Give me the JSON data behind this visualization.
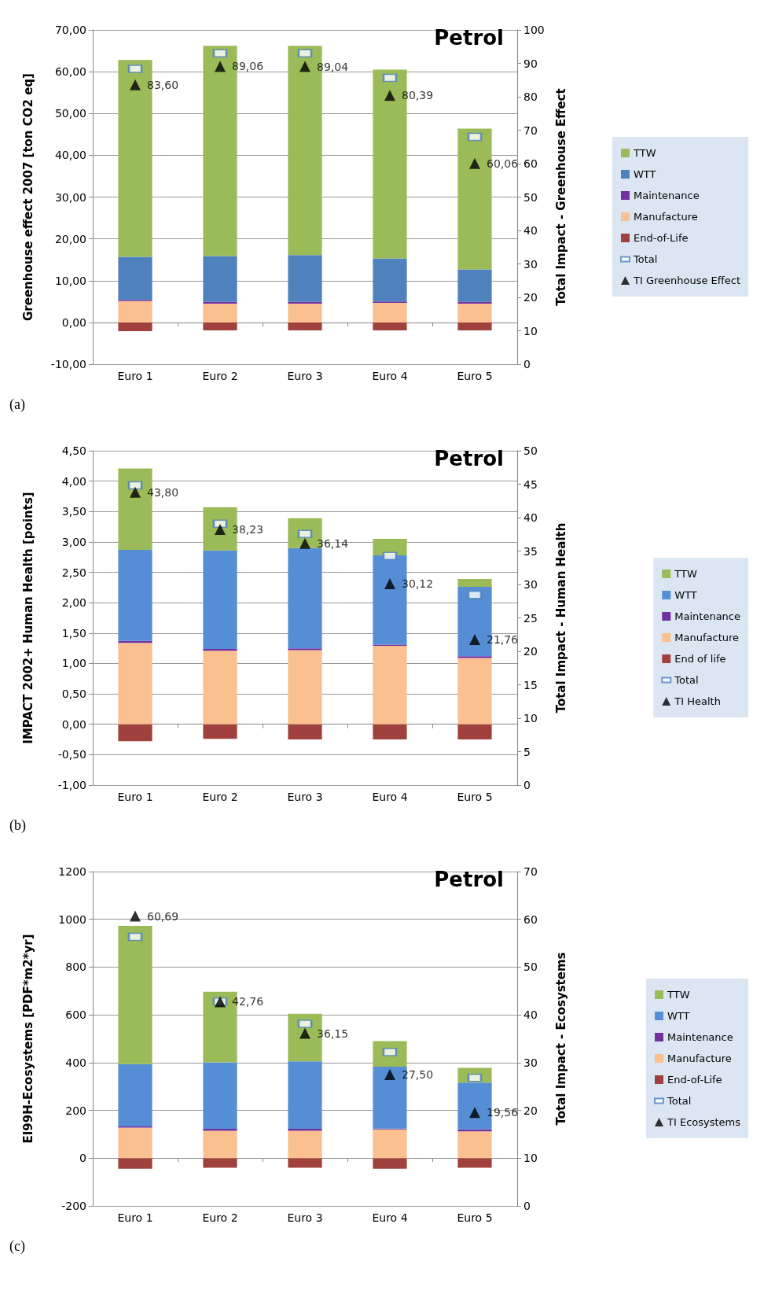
{
  "chart_data": [
    {
      "type": "bar",
      "title": "Petrol",
      "ylabel": "Greenhouse effect 2007 [ton CO2 eq]",
      "y2label": "Total Impact - Greenhouse Effect",
      "annotations": [
        "(a)"
      ],
      "categories": [
        "Euro 1",
        "Euro 2",
        "Euro 3",
        "Euro 4",
        "Euro 5"
      ],
      "stacked": true,
      "grid": "y",
      "legend": "right",
      "ylim": [
        -10,
        70
      ],
      "yticks": [
        {
          "value": -10,
          "label": "-10,00"
        },
        {
          "value": 0,
          "label": "0,00"
        },
        {
          "value": 10,
          "label": "10,00"
        },
        {
          "value": 20,
          "label": "20,00"
        },
        {
          "value": 30,
          "label": "30,00"
        },
        {
          "value": 40,
          "label": "40,00"
        },
        {
          "value": 50,
          "label": "50,00"
        },
        {
          "value": 60,
          "label": "60,00"
        },
        {
          "value": 70,
          "label": "70,00"
        }
      ],
      "y2lim": [
        0,
        100
      ],
      "y2ticks": [
        0,
        10,
        20,
        30,
        40,
        50,
        60,
        70,
        80,
        90,
        100
      ],
      "series": [
        {
          "name": "End-of-Life",
          "color": "#a0413e",
          "values": [
            -2.1,
            -1.9,
            -1.9,
            -1.9,
            -1.9
          ]
        },
        {
          "name": "Manufacture",
          "color": "#fac090",
          "values": [
            5.1,
            4.5,
            4.5,
            4.7,
            4.5
          ]
        },
        {
          "name": "Maintenance",
          "color": "#7030a0",
          "values": [
            0.3,
            0.4,
            0.4,
            0.3,
            0.4
          ]
        },
        {
          "name": "WTT",
          "color": "#4f81bd",
          "values": [
            10.3,
            11.0,
            11.2,
            10.3,
            7.8
          ]
        },
        {
          "name": "TTW",
          "color": "#9bbb59",
          "values": [
            47.1,
            50.3,
            50.1,
            45.2,
            33.7
          ]
        },
        {
          "name": "Total",
          "type": "scatter",
          "marker": "square",
          "color": "#4f81bd",
          "values": [
            60.7,
            64.4,
            64.4,
            58.5,
            44.4
          ]
        },
        {
          "name": "TI Greenhouse Effect",
          "type": "scatter",
          "axis": "y2",
          "marker": "triangle",
          "color": "#000000",
          "values": [
            83.6,
            89.06,
            89.04,
            80.39,
            60.06
          ],
          "value_labels": [
            "83,60",
            "89,06",
            "89,04",
            "80,39",
            "60,06"
          ]
        }
      ]
    },
    {
      "type": "bar",
      "title": "Petrol",
      "ylabel": "IMPACT 2002+ Human Health [points]",
      "y2label": "Total Impact - Human Health",
      "annotations": [
        "(b)"
      ],
      "categories": [
        "Euro 1",
        "Euro 2",
        "Euro 3",
        "Euro 4",
        "Euro 5"
      ],
      "stacked": true,
      "grid": "y",
      "legend": "right",
      "ylim": [
        -1,
        4.5
      ],
      "yticks": [
        {
          "value": -1,
          "label": "-1,00"
        },
        {
          "value": -0.5,
          "label": "-0,50"
        },
        {
          "value": 0,
          "label": "0,00"
        },
        {
          "value": 0.5,
          "label": "0,50"
        },
        {
          "value": 1,
          "label": "1,00"
        },
        {
          "value": 1.5,
          "label": "1,50"
        },
        {
          "value": 2,
          "label": "2,00"
        },
        {
          "value": 2.5,
          "label": "2,50"
        },
        {
          "value": 3,
          "label": "3,00"
        },
        {
          "value": 3.5,
          "label": "3,50"
        },
        {
          "value": 4,
          "label": "4,00"
        },
        {
          "value": 4.5,
          "label": "4,50"
        }
      ],
      "y2lim": [
        0,
        50
      ],
      "y2ticks": [
        0,
        5,
        10,
        15,
        20,
        25,
        30,
        35,
        40,
        45,
        50
      ],
      "series": [
        {
          "name": "End of life",
          "color": "#a0413e",
          "values": [
            -0.28,
            -0.24,
            -0.25,
            -0.25,
            -0.25
          ]
        },
        {
          "name": "Manufacture",
          "color": "#fac090",
          "values": [
            1.34,
            1.21,
            1.22,
            1.29,
            1.09
          ]
        },
        {
          "name": "Maintenance",
          "color": "#7030a0",
          "values": [
            0.03,
            0.03,
            0.03,
            0.02,
            0.03
          ]
        },
        {
          "name": "WTT",
          "color": "#558ed5",
          "values": [
            1.5,
            1.62,
            1.65,
            1.47,
            1.14
          ]
        },
        {
          "name": "TTW",
          "color": "#9bbb59",
          "values": [
            1.34,
            0.71,
            0.49,
            0.27,
            0.13
          ]
        },
        {
          "name": "Total",
          "type": "scatter",
          "marker": "square",
          "color": "#4f81bd",
          "values": [
            3.93,
            3.3,
            3.13,
            2.77,
            2.13
          ]
        },
        {
          "name": "TI Health",
          "type": "scatter",
          "axis": "y2",
          "marker": "triangle",
          "color": "#000000",
          "values": [
            43.8,
            38.23,
            36.14,
            30.12,
            21.76
          ],
          "value_labels": [
            "43,80",
            "38,23",
            "36,14",
            "30,12",
            "21,76"
          ]
        }
      ]
    },
    {
      "type": "bar",
      "title": "Petrol",
      "ylabel": "EI99H-Ecosystems [PDF*m2*yr]",
      "y2label": "Total Impact - Ecosystems",
      "annotations": [
        "(c)"
      ],
      "categories": [
        "Euro 1",
        "Euro 2",
        "Euro 3",
        "Euro 4",
        "Euro 5"
      ],
      "stacked": true,
      "grid": "y",
      "legend": "right",
      "ylim": [
        -200,
        1200
      ],
      "yticks": [
        -200,
        0,
        200,
        400,
        600,
        800,
        1000,
        1200
      ],
      "y2lim": [
        0,
        70
      ],
      "y2ticks": [
        0,
        10,
        20,
        30,
        40,
        50,
        60,
        70
      ],
      "series": [
        {
          "name": "End-of-Life",
          "color": "#a0413e",
          "values": [
            -44,
            -40,
            -40,
            -44,
            -40
          ]
        },
        {
          "name": "Manufacture",
          "color": "#fac090",
          "values": [
            128,
            115,
            115,
            120,
            112
          ]
        },
        {
          "name": "Maintenance",
          "color": "#7030a0",
          "values": [
            5,
            8,
            8,
            4,
            8
          ]
        },
        {
          "name": "WTT",
          "color": "#558ed5",
          "values": [
            261,
            278,
            282,
            259,
            196
          ]
        },
        {
          "name": "TTW",
          "color": "#9bbb59",
          "values": [
            579,
            296,
            200,
            107,
            62
          ]
        },
        {
          "name": "Total",
          "type": "scatter",
          "marker": "square",
          "color": "#4f81bd",
          "values": [
            927,
            656,
            563,
            444,
            336
          ]
        },
        {
          "name": "TI Ecosystems",
          "type": "scatter",
          "axis": "y2",
          "marker": "triangle",
          "color": "#000000",
          "values": [
            60.69,
            42.76,
            36.15,
            27.5,
            19.56
          ],
          "value_labels": [
            "60,69",
            "42,76",
            "36,15",
            "27,50",
            "19,56"
          ]
        }
      ]
    }
  ]
}
